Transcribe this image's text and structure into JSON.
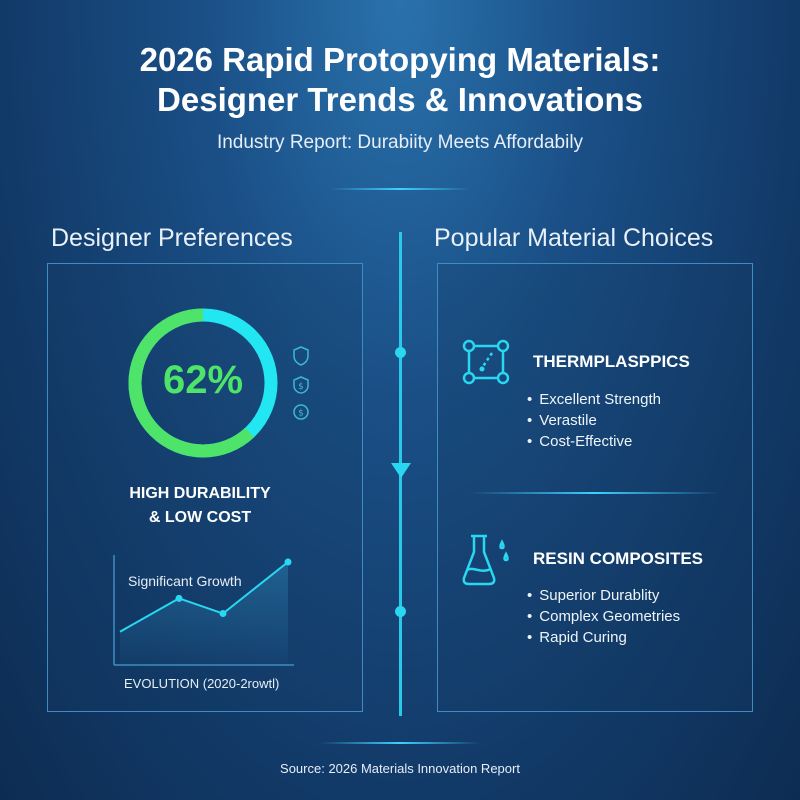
{
  "header": {
    "title_line1": "2026 Rapid Protopying Materials:",
    "title_line2": "Designer Trends & Innovations",
    "subtitle": "Industry Report: Durabiity Meets Affordabily"
  },
  "left": {
    "heading": "Designer Preferences",
    "donut": {
      "value_label": "62%",
      "percent": 62,
      "colors": {
        "primary": "#4ee46a",
        "secondary": "#22e6f2"
      }
    },
    "icons": [
      "shield-icon",
      "dollar-shield-icon",
      "dollar-coin-icon"
    ],
    "caption_line1": "HIGH DURABILITY",
    "caption_line2": "& LOW COST",
    "trend": {
      "annotation": "Significant Growth",
      "label": "EVOLUTION (2020-2rowtl)",
      "values": [
        1,
        2.1,
        1.6,
        3.3
      ]
    }
  },
  "right": {
    "heading": "Popular Material Choices",
    "materials": [
      {
        "icon": "molecule-icon",
        "name": "THERMPLASPPICS",
        "points": [
          "Excellent Strength",
          "Verastile",
          "Cost-Effective"
        ]
      },
      {
        "icon": "flask-icon",
        "name": "RESIN COMPOSITES",
        "points": [
          "Superior Durablity",
          "Complex Geometries",
          "Rapid Curing"
        ]
      }
    ]
  },
  "footer": {
    "source": "Source: 2026 Materials Innovation Report"
  },
  "colors": {
    "accent": "#29c9e8",
    "border": "#3f8cc4"
  }
}
